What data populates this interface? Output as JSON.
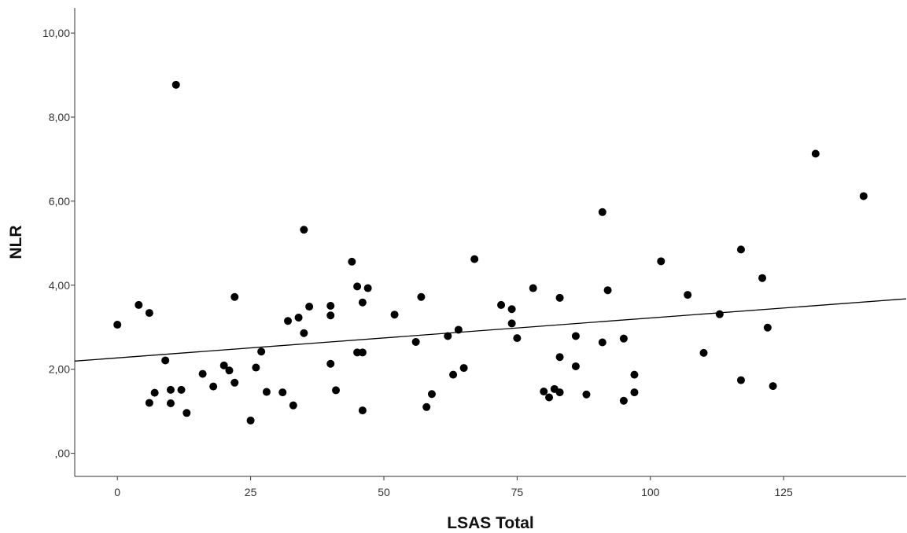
{
  "chart_data": {
    "type": "scatter",
    "title": "",
    "xlabel": "LSAS Total",
    "ylabel": "NLR",
    "xlim": [
      -8,
      148
    ],
    "ylim": [
      -0.55,
      10.6
    ],
    "x_ticks": [
      0,
      25,
      50,
      75,
      100,
      125
    ],
    "x_tick_labels": [
      "0",
      "25",
      "50",
      "75",
      "100",
      "125"
    ],
    "y_ticks": [
      0,
      2,
      4,
      6,
      8,
      10
    ],
    "y_tick_labels": [
      ",00",
      "2,00",
      "4,00",
      "6,00",
      "8,00",
      "10,00"
    ],
    "grid": false,
    "legend": "none",
    "point_color": "#000000",
    "fit_line": {
      "type": "linear",
      "intercept": 2.27,
      "slope": 0.0095,
      "color": "#000000"
    },
    "points": [
      {
        "x": 0,
        "y": 3.06
      },
      {
        "x": 4,
        "y": 3.53
      },
      {
        "x": 6,
        "y": 3.34
      },
      {
        "x": 6,
        "y": 1.2
      },
      {
        "x": 7,
        "y": 1.44
      },
      {
        "x": 9,
        "y": 2.21
      },
      {
        "x": 10,
        "y": 1.51
      },
      {
        "x": 10,
        "y": 1.19
      },
      {
        "x": 11,
        "y": 8.77
      },
      {
        "x": 12,
        "y": 1.51
      },
      {
        "x": 13,
        "y": 0.96
      },
      {
        "x": 16,
        "y": 1.89
      },
      {
        "x": 18,
        "y": 1.59
      },
      {
        "x": 20,
        "y": 2.09
      },
      {
        "x": 21,
        "y": 1.97
      },
      {
        "x": 22,
        "y": 3.72
      },
      {
        "x": 22,
        "y": 1.68
      },
      {
        "x": 25,
        "y": 0.78
      },
      {
        "x": 26,
        "y": 2.04
      },
      {
        "x": 27,
        "y": 2.42
      },
      {
        "x": 28,
        "y": 1.46
      },
      {
        "x": 31,
        "y": 1.45
      },
      {
        "x": 32,
        "y": 3.15
      },
      {
        "x": 33,
        "y": 1.14
      },
      {
        "x": 34,
        "y": 3.23
      },
      {
        "x": 35,
        "y": 5.32
      },
      {
        "x": 35,
        "y": 2.86
      },
      {
        "x": 36,
        "y": 3.49
      },
      {
        "x": 40,
        "y": 3.51
      },
      {
        "x": 40,
        "y": 3.28
      },
      {
        "x": 40,
        "y": 2.13
      },
      {
        "x": 41,
        "y": 1.5
      },
      {
        "x": 44,
        "y": 4.56
      },
      {
        "x": 45,
        "y": 3.97
      },
      {
        "x": 45,
        "y": 2.4
      },
      {
        "x": 46,
        "y": 3.59
      },
      {
        "x": 46,
        "y": 2.4
      },
      {
        "x": 46,
        "y": 1.02
      },
      {
        "x": 47,
        "y": 3.93
      },
      {
        "x": 52,
        "y": 3.3
      },
      {
        "x": 56,
        "y": 2.65
      },
      {
        "x": 57,
        "y": 3.72
      },
      {
        "x": 58,
        "y": 1.1
      },
      {
        "x": 59,
        "y": 1.41
      },
      {
        "x": 62,
        "y": 2.79
      },
      {
        "x": 63,
        "y": 1.87
      },
      {
        "x": 64,
        "y": 2.94
      },
      {
        "x": 65,
        "y": 2.03
      },
      {
        "x": 67,
        "y": 4.62
      },
      {
        "x": 72,
        "y": 3.53
      },
      {
        "x": 74,
        "y": 3.43
      },
      {
        "x": 74,
        "y": 3.09
      },
      {
        "x": 75,
        "y": 2.74
      },
      {
        "x": 78,
        "y": 3.93
      },
      {
        "x": 80,
        "y": 1.47
      },
      {
        "x": 81,
        "y": 1.33
      },
      {
        "x": 82,
        "y": 1.53
      },
      {
        "x": 83,
        "y": 3.7
      },
      {
        "x": 83,
        "y": 2.29
      },
      {
        "x": 83,
        "y": 1.45
      },
      {
        "x": 86,
        "y": 2.79
      },
      {
        "x": 86,
        "y": 2.07
      },
      {
        "x": 88,
        "y": 1.4
      },
      {
        "x": 91,
        "y": 5.74
      },
      {
        "x": 91,
        "y": 2.64
      },
      {
        "x": 92,
        "y": 3.88
      },
      {
        "x": 95,
        "y": 2.73
      },
      {
        "x": 95,
        "y": 1.25
      },
      {
        "x": 97,
        "y": 1.87
      },
      {
        "x": 97,
        "y": 1.45
      },
      {
        "x": 102,
        "y": 4.57
      },
      {
        "x": 107,
        "y": 3.77
      },
      {
        "x": 110,
        "y": 2.39
      },
      {
        "x": 113,
        "y": 3.31
      },
      {
        "x": 117,
        "y": 4.85
      },
      {
        "x": 117,
        "y": 1.74
      },
      {
        "x": 121,
        "y": 4.17
      },
      {
        "x": 122,
        "y": 2.99
      },
      {
        "x": 123,
        "y": 1.6
      },
      {
        "x": 131,
        "y": 7.13
      },
      {
        "x": 140,
        "y": 6.12
      }
    ]
  }
}
